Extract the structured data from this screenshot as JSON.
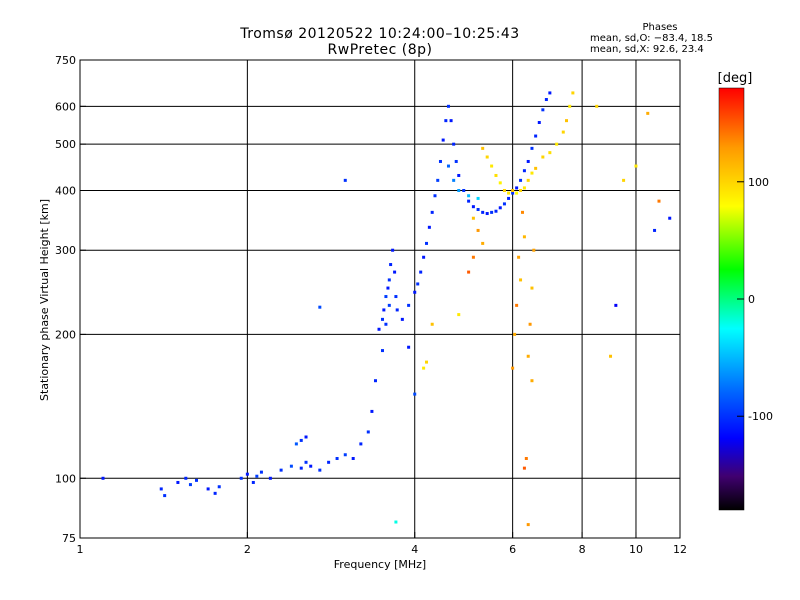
{
  "chart_data": {
    "type": "scatter",
    "title": "Tromsø 20120522 10:24:00–10:25:43",
    "subtitle": "RwPretec (8p)",
    "xlabel": "Frequency [MHz]",
    "ylabel": "Stationary phase Virtual Height [km]",
    "xscale": "log",
    "yscale": "log",
    "xlim": [
      1,
      12
    ],
    "ylim": [
      75,
      750
    ],
    "x_ticks": [
      1,
      2,
      4,
      6,
      8,
      10,
      12
    ],
    "y_ticks": [
      75,
      100,
      200,
      300,
      400,
      500,
      600,
      750
    ],
    "x_grid": [
      2,
      4,
      6,
      8,
      10
    ],
    "y_grid": [
      100,
      200,
      300,
      400,
      500,
      600
    ],
    "grid": true,
    "phase_stats": {
      "heading": "Phases",
      "line_o": "mean, sd,O: −83.4, 18.5",
      "line_x": "mean, sd,X:  92.6, 23.4"
    },
    "colorbar": {
      "label": "[deg]",
      "ticks": [
        100,
        0,
        -100
      ],
      "range": [
        -180,
        180
      ],
      "placement": "right"
    },
    "series": [
      {
        "color_by": "phase_deg",
        "points": [
          [
            1.1,
            100,
            -110
          ],
          [
            1.4,
            95,
            -105
          ],
          [
            1.42,
            92,
            -100
          ],
          [
            1.5,
            98,
            -110
          ],
          [
            1.55,
            100,
            -105
          ],
          [
            1.58,
            97,
            -95
          ],
          [
            1.62,
            99,
            -100
          ],
          [
            1.7,
            95,
            -110
          ],
          [
            1.75,
            93,
            -105
          ],
          [
            1.78,
            96,
            -100
          ],
          [
            1.95,
            100,
            -100
          ],
          [
            2.0,
            102,
            -110
          ],
          [
            2.05,
            98,
            -105
          ],
          [
            2.08,
            101,
            -95
          ],
          [
            2.12,
            103,
            -100
          ],
          [
            2.2,
            100,
            -110
          ],
          [
            2.3,
            104,
            -100
          ],
          [
            2.4,
            106,
            -90
          ],
          [
            2.5,
            105,
            -105
          ],
          [
            2.55,
            108,
            -100
          ],
          [
            2.6,
            106,
            -110
          ],
          [
            2.45,
            118,
            -85
          ],
          [
            2.5,
            120,
            -100
          ],
          [
            2.55,
            122,
            -110
          ],
          [
            2.7,
            104,
            -100
          ],
          [
            2.8,
            108,
            -105
          ],
          [
            2.9,
            110,
            -100
          ],
          [
            3.0,
            112,
            -95
          ],
          [
            3.1,
            110,
            -110
          ],
          [
            3.2,
            118,
            -105
          ],
          [
            3.3,
            125,
            -100
          ],
          [
            3.35,
            138,
            -110
          ],
          [
            3.4,
            160,
            -105
          ],
          [
            3.5,
            185,
            -100
          ],
          [
            3.45,
            205,
            -110
          ],
          [
            3.5,
            215,
            -100
          ],
          [
            3.52,
            225,
            -110
          ],
          [
            3.55,
            240,
            -95
          ],
          [
            3.58,
            250,
            -110
          ],
          [
            3.6,
            260,
            -100
          ],
          [
            3.62,
            280,
            -105
          ],
          [
            3.65,
            300,
            -110
          ],
          [
            3.6,
            230,
            -95
          ],
          [
            3.55,
            210,
            -100
          ],
          [
            3.68,
            270,
            -110
          ],
          [
            3.7,
            240,
            -100
          ],
          [
            3.72,
            225,
            -105
          ],
          [
            3.8,
            215,
            -110
          ],
          [
            3.9,
            230,
            -100
          ],
          [
            4.0,
            245,
            -110
          ],
          [
            4.05,
            255,
            -100
          ],
          [
            4.1,
            270,
            -105
          ],
          [
            4.15,
            290,
            -110
          ],
          [
            4.2,
            310,
            -100
          ],
          [
            4.25,
            335,
            -110
          ],
          [
            4.3,
            360,
            -105
          ],
          [
            4.35,
            390,
            -100
          ],
          [
            4.4,
            420,
            -95
          ],
          [
            4.45,
            460,
            -100
          ],
          [
            4.5,
            510,
            -110
          ],
          [
            4.55,
            560,
            -105
          ],
          [
            4.6,
            600,
            -100
          ],
          [
            4.65,
            560,
            -110
          ],
          [
            4.7,
            500,
            -105
          ],
          [
            4.75,
            460,
            -100
          ],
          [
            4.8,
            430,
            -110
          ],
          [
            4.9,
            400,
            -100
          ],
          [
            5.0,
            380,
            -105
          ],
          [
            5.1,
            370,
            -110
          ],
          [
            5.2,
            365,
            -100
          ],
          [
            5.3,
            360,
            -105
          ],
          [
            5.4,
            358,
            -110
          ],
          [
            5.5,
            360,
            -100
          ],
          [
            5.6,
            362,
            -105
          ],
          [
            5.7,
            368,
            -110
          ],
          [
            5.8,
            375,
            -100
          ],
          [
            5.9,
            385,
            -105
          ],
          [
            6.0,
            395,
            -100
          ],
          [
            6.1,
            405,
            -110
          ],
          [
            6.2,
            420,
            -100
          ],
          [
            6.3,
            440,
            -105
          ],
          [
            6.4,
            460,
            -110
          ],
          [
            6.5,
            490,
            -100
          ],
          [
            6.6,
            520,
            -105
          ],
          [
            6.7,
            555,
            -110
          ],
          [
            6.8,
            590,
            -100
          ],
          [
            6.9,
            620,
            -105
          ],
          [
            7.0,
            640,
            -110
          ],
          [
            4.6,
            450,
            -80
          ],
          [
            4.7,
            420,
            -70
          ],
          [
            4.8,
            400,
            -60
          ],
          [
            5.0,
            390,
            -50
          ],
          [
            5.2,
            385,
            -40
          ],
          [
            5.3,
            490,
            110
          ],
          [
            5.4,
            470,
            100
          ],
          [
            5.5,
            450,
            90
          ],
          [
            5.6,
            430,
            95
          ],
          [
            5.7,
            415,
            85
          ],
          [
            5.8,
            400,
            100
          ],
          [
            5.9,
            395,
            90
          ],
          [
            6.0,
            400,
            110
          ],
          [
            6.1,
            395,
            80
          ],
          [
            6.2,
            400,
            100
          ],
          [
            6.3,
            405,
            90
          ],
          [
            6.4,
            420,
            100
          ],
          [
            6.5,
            435,
            90
          ],
          [
            6.6,
            445,
            110
          ],
          [
            6.8,
            470,
            100
          ],
          [
            7.0,
            480,
            95
          ],
          [
            7.2,
            500,
            90
          ],
          [
            7.4,
            530,
            100
          ],
          [
            7.5,
            560,
            110
          ],
          [
            7.6,
            600,
            90
          ],
          [
            7.7,
            640,
            100
          ],
          [
            6.0,
            170,
            130
          ],
          [
            6.05,
            200,
            120
          ],
          [
            6.1,
            230,
            140
          ],
          [
            6.2,
            260,
            110
          ],
          [
            6.15,
            290,
            125
          ],
          [
            6.3,
            320,
            115
          ],
          [
            6.25,
            360,
            135
          ],
          [
            6.3,
            105,
            150
          ],
          [
            6.35,
            110,
            140
          ],
          [
            6.4,
            180,
            120
          ],
          [
            6.45,
            210,
            130
          ],
          [
            6.5,
            250,
            110
          ],
          [
            6.55,
            300,
            125
          ],
          [
            5.0,
            270,
            150
          ],
          [
            5.1,
            290,
            140
          ],
          [
            5.2,
            330,
            130
          ],
          [
            5.3,
            310,
            120
          ],
          [
            5.1,
            350,
            110
          ],
          [
            4.8,
            220,
            90
          ],
          [
            9.0,
            180,
            110
          ],
          [
            9.5,
            420,
            100
          ],
          [
            10.0,
            450,
            90
          ],
          [
            10.5,
            580,
            120
          ],
          [
            11.0,
            380,
            140
          ],
          [
            8.5,
            600,
            100
          ],
          [
            9.2,
            230,
            -120
          ],
          [
            11.5,
            350,
            -110
          ],
          [
            10.8,
            330,
            -105
          ],
          [
            3.0,
            420,
            -100
          ],
          [
            2.7,
            228,
            -90
          ],
          [
            3.7,
            81,
            -20
          ],
          [
            3.9,
            188,
            -110
          ],
          [
            4.15,
            170,
            90
          ],
          [
            4.2,
            175,
            100
          ],
          [
            4.0,
            150,
            -90
          ],
          [
            4.3,
            210,
            110
          ],
          [
            6.4,
            80,
            130
          ],
          [
            6.5,
            160,
            120
          ]
        ]
      }
    ]
  }
}
